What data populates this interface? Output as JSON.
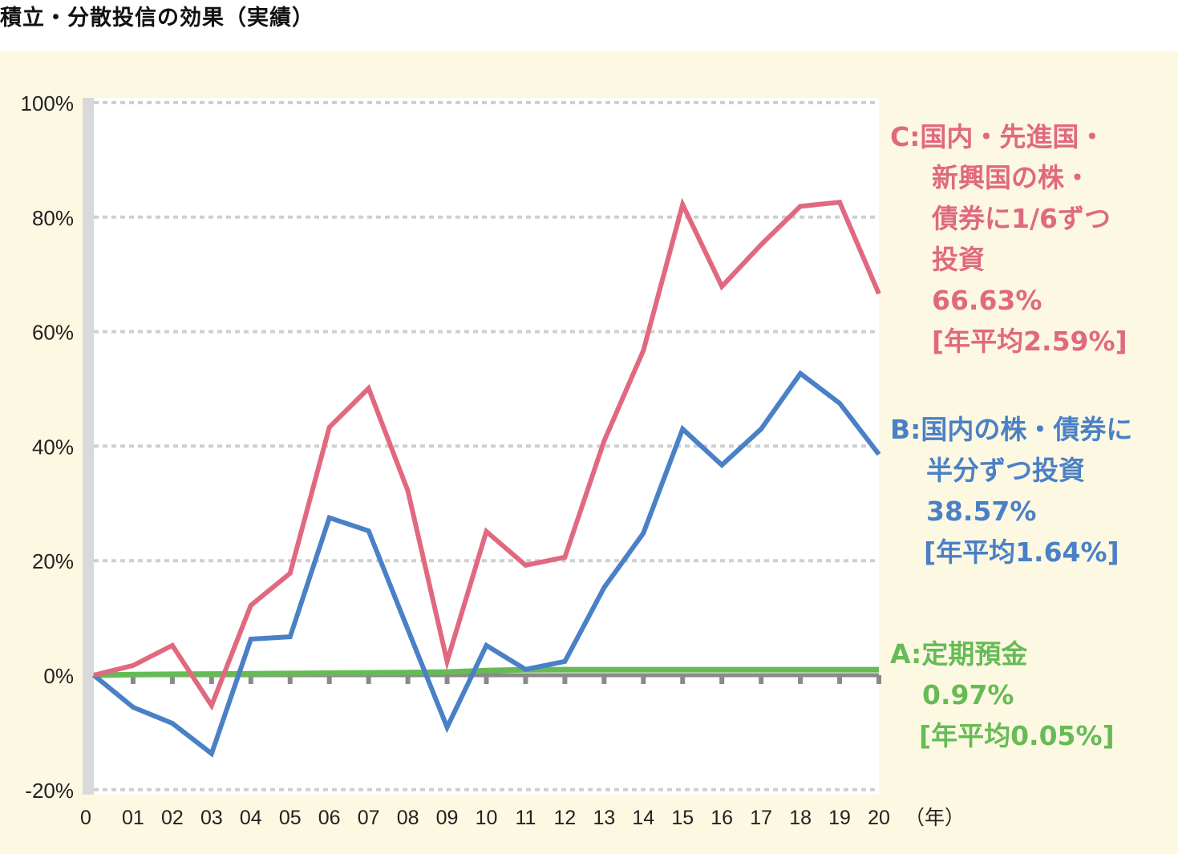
{
  "title": "積立・分散投信の効果（実績）",
  "chart_data": {
    "type": "line",
    "title": "積立・分散投信の効果（実績）",
    "xlabel": "（年）",
    "ylabel": "",
    "ylim": [
      -20,
      100
    ],
    "yticks": [
      "100%",
      "80%",
      "60%",
      "40%",
      "20%",
      "0%",
      "-20%"
    ],
    "ytick_values": [
      100,
      80,
      60,
      40,
      20,
      0,
      -20
    ],
    "categories": [
      "0",
      "01",
      "02",
      "03",
      "04",
      "05",
      "06",
      "07",
      "08",
      "09",
      "10",
      "11",
      "12",
      "13",
      "14",
      "15",
      "16",
      "17",
      "18",
      "19",
      "20"
    ],
    "grid": true,
    "series": [
      {
        "name": "C:国内・先進国・新興国の株・債券に1/6ずつ投資",
        "color": "#e0697f",
        "values": [
          0,
          1.7,
          5.2,
          -5.3,
          12.2,
          17.8,
          43.3,
          50.1,
          32.2,
          2.4,
          25.1,
          19.2,
          20.6,
          40.9,
          56.7,
          82.2,
          67.9,
          75.2,
          81.9,
          82.6,
          66.63
        ]
      },
      {
        "name": "B:国内の株・債券に半分ずつ投資",
        "color": "#4a80c6",
        "values": [
          0,
          -5.6,
          -8.4,
          -13.7,
          6.3,
          6.7,
          27.5,
          25.2,
          8.0,
          -9.1,
          5.2,
          1.0,
          2.4,
          15.3,
          24.8,
          43.0,
          36.7,
          43.0,
          52.7,
          47.5,
          38.57
        ]
      },
      {
        "name": "A:定期預金",
        "color": "#66bb55",
        "values": [
          0,
          0.1,
          0.15,
          0.2,
          0.25,
          0.3,
          0.35,
          0.4,
          0.45,
          0.55,
          0.8,
          0.95,
          0.97,
          0.97,
          0.97,
          0.97,
          0.97,
          0.97,
          0.97,
          0.97,
          0.97
        ]
      }
    ],
    "annotations": {
      "C": [
        "C:国内・先進国・",
        "新興国の株・",
        "債券に1/6ずつ",
        "投資",
        "66.63%",
        "[年平均2.59%]"
      ],
      "B": [
        "B:国内の株・債券に",
        "半分ずつ投資",
        "38.57%",
        "[年平均1.64%]"
      ],
      "A": [
        "A:定期預金",
        "0.97%",
        "[年平均0.05%]"
      ]
    }
  }
}
